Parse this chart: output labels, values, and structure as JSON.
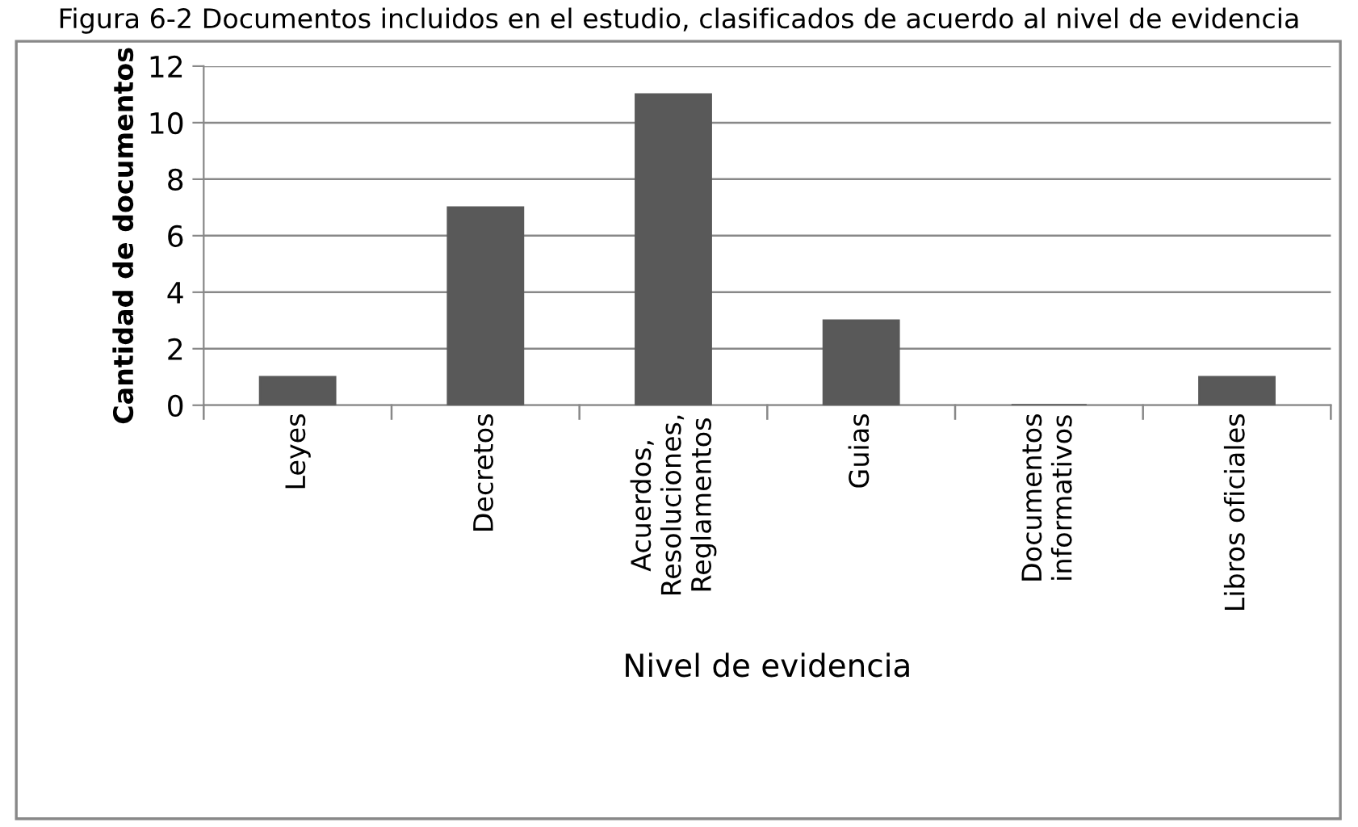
{
  "chart_data": {
    "type": "bar",
    "title": "Figura 6-2 Documentos incluidos en el estudio, clasificados de acuerdo al nivel de evidencia",
    "xlabel": "Nivel de evidencia",
    "ylabel": "Cantidad de documentos",
    "categories": [
      "Leyes",
      "Decretos",
      "Acuerdos,\nResoluciones,\nReglamentos",
      "Guias",
      "Documentos\ninformativos",
      "Libros oficiales"
    ],
    "values": [
      1,
      7,
      11,
      3,
      0,
      1
    ],
    "color": "#595959",
    "ylim": [
      0,
      12
    ],
    "yticks": [
      0,
      2,
      4,
      6,
      8,
      10,
      12
    ],
    "grid": "y"
  }
}
